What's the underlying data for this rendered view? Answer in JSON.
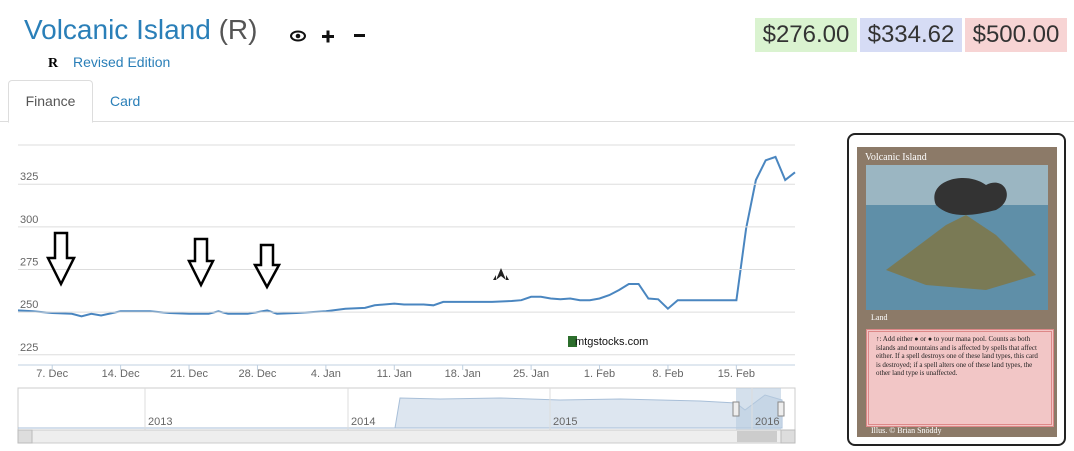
{
  "header": {
    "title": "Volcanic Island",
    "rarity": "(R)",
    "set_symbol": "R",
    "set_name": "Revised Edition"
  },
  "prices": [
    "$276.00",
    "$334.62",
    "$500.00"
  ],
  "tabs": [
    "Finance",
    "Card"
  ],
  "watermark": "mtgstocks.com",
  "navigator": {
    "labels": [
      "2013",
      "2014",
      "2015",
      "2016"
    ]
  },
  "card": {
    "name": "Volcanic Island",
    "type": "Land",
    "text": "↑: Add either ● or ● to your mana pool. Counts as both islands and mountains and is affected by spells that affect either. If a spell destroys one of these land types, this card is destroyed; if a spell alters one of these land types, the other land type is unaffected.",
    "artist": "Illus. © Brian Snõddy"
  },
  "chart_data": {
    "type": "line",
    "color": "#4a86c0",
    "grid": true,
    "x": [
      -3.5,
      -2,
      0,
      2,
      3,
      4,
      5,
      7,
      10,
      12,
      14,
      16,
      17,
      18,
      20,
      21,
      22,
      23,
      25,
      28,
      30,
      32,
      33,
      35,
      36,
      38,
      39,
      40,
      42,
      45,
      47,
      48,
      49,
      50,
      51,
      52,
      53,
      54,
      55,
      56,
      57,
      58,
      59,
      60,
      61,
      62,
      63,
      64,
      66,
      70,
      71,
      72,
      73,
      74,
      75,
      76
    ],
    "values": [
      251,
      250.5,
      249.5,
      249,
      247.5,
      249,
      248,
      250.5,
      250.5,
      249.5,
      249,
      249,
      250.5,
      249,
      249,
      250,
      251,
      249,
      249.5,
      250.5,
      252,
      252.5,
      254,
      255,
      254.5,
      254.5,
      254,
      256,
      256,
      256,
      256.5,
      257,
      259,
      259,
      258,
      257.5,
      258,
      257,
      257,
      258,
      260,
      263,
      266.5,
      266.5,
      258,
      257.5,
      252,
      257,
      257,
      257,
      299,
      327.5,
      339,
      341,
      327.5,
      332
    ],
    "xlim": [
      -3.5,
      76
    ],
    "xticks": [
      {
        "value": 0,
        "label": "7. Dec"
      },
      {
        "value": 7,
        "label": "14. Dec"
      },
      {
        "value": 14,
        "label": "21. Dec"
      },
      {
        "value": 21,
        "label": "28. Dec"
      },
      {
        "value": 28,
        "label": "4. Jan"
      },
      {
        "value": 35,
        "label": "11. Jan"
      },
      {
        "value": 42,
        "label": "18. Jan"
      },
      {
        "value": 49,
        "label": "25. Jan"
      },
      {
        "value": 56,
        "label": "1. Feb"
      },
      {
        "value": 63,
        "label": "8. Feb"
      },
      {
        "value": 70,
        "label": "15. Feb"
      }
    ],
    "ylim": [
      219,
      348
    ],
    "yticks": [
      225,
      250,
      275,
      300,
      325
    ]
  }
}
